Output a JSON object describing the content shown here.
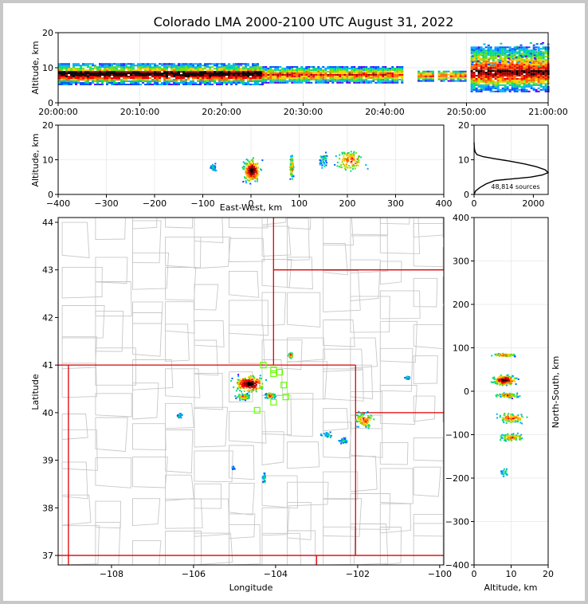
{
  "chart_data": {
    "type": "scatter",
    "title": "Colorado LMA 2000-2100 UTC August 31, 2022",
    "source_count_label": "48,814 sources",
    "colors": {
      "state_lines": "#e00000",
      "county_lines": "#c8c8c8",
      "station_markers": "#66ff00",
      "density_low": "#5500ff",
      "density_high": "#000000"
    },
    "time_height": {
      "ylabel": "Altitude, km",
      "ylim": [
        0,
        20
      ],
      "yticks": [
        "0",
        "10",
        "20"
      ],
      "xlim": [
        "20:00:00",
        "21:00:00"
      ],
      "xticks": [
        "20:00:00",
        "20:10:00",
        "20:20:00",
        "20:30:00",
        "20:40:00",
        "20:50:00",
        "21:00:00"
      ],
      "activity": [
        {
          "start_min": 0,
          "end_min": 25,
          "alt_low_km": 5,
          "alt_high_km": 11
        },
        {
          "start_min": 25,
          "end_min": 42,
          "alt_low_km": 5.5,
          "alt_high_km": 10
        },
        {
          "start_min": 44,
          "end_min": 46,
          "alt_low_km": 6,
          "alt_high_km": 9
        },
        {
          "start_min": 46.5,
          "end_min": 50,
          "alt_low_km": 6,
          "alt_high_km": 9
        },
        {
          "start_min": 50.5,
          "end_min": 60,
          "alt_low_km": 3,
          "alt_high_km": 16
        }
      ]
    },
    "ew_height": {
      "xlabel": "East-West, km",
      "ylabel": "Altitude, km",
      "xlim": [
        -400,
        400
      ],
      "xticks": [
        "−400",
        "−300",
        "−200",
        "−100",
        "0",
        "100",
        "200",
        "300",
        "400"
      ],
      "ylim": [
        0,
        20
      ],
      "yticks": [
        "0",
        "10",
        "20"
      ],
      "clusters": [
        {
          "x_km": 0,
          "alt_km": 7,
          "spread_x": 15,
          "spread_alt": 3,
          "density": "high"
        },
        {
          "x_km": 83,
          "alt_km": 8,
          "spread_x": 3,
          "spread_alt": 3,
          "density": "medium"
        },
        {
          "x_km": 150,
          "alt_km": 10,
          "spread_x": 8,
          "spread_alt": 2,
          "density": "low"
        },
        {
          "x_km": 205,
          "alt_km": 10,
          "spread_x": 25,
          "spread_alt": 3,
          "density": "medium"
        },
        {
          "x_km": -80,
          "alt_km": 8,
          "spread_x": 5,
          "spread_alt": 1,
          "density": "low"
        }
      ]
    },
    "histogram": {
      "xlim": [
        0,
        2500
      ],
      "xticks": [
        "0",
        "2000"
      ],
      "ylim": [
        0,
        20
      ],
      "yticks": [
        "0",
        "10",
        "20"
      ],
      "profile": [
        [
          0,
          0
        ],
        [
          50,
          1
        ],
        [
          200,
          2
        ],
        [
          400,
          3
        ],
        [
          700,
          4
        ],
        [
          1300,
          4.5
        ],
        [
          1900,
          5
        ],
        [
          2300,
          5.6
        ],
        [
          2500,
          6.3
        ],
        [
          2400,
          7.1
        ],
        [
          2100,
          8.0
        ],
        [
          1700,
          8.8
        ],
        [
          1200,
          9.6
        ],
        [
          700,
          10.3
        ],
        [
          300,
          10.9
        ],
        [
          100,
          11.5
        ],
        [
          40,
          12.2
        ],
        [
          15,
          13
        ],
        [
          5,
          14
        ],
        [
          0,
          15
        ]
      ]
    },
    "map": {
      "xlabel": "Longitude",
      "ylabel": "Latitude",
      "xlim": [
        -109.3,
        -99.9
      ],
      "ylim": [
        36.8,
        44.1
      ],
      "xticks": [
        {
          "value": -108,
          "label": "−108"
        },
        {
          "value": -106,
          "label": "−106"
        },
        {
          "value": -104,
          "label": "−104"
        },
        {
          "value": -102,
          "label": "−102"
        },
        {
          "value": -100,
          "label": "−100"
        }
      ],
      "yticks": [
        {
          "value": 37,
          "label": "37"
        },
        {
          "value": 38,
          "label": "38"
        },
        {
          "value": 39,
          "label": "39"
        },
        {
          "value": 40,
          "label": "40"
        },
        {
          "value": 41,
          "label": "41"
        },
        {
          "value": 42,
          "label": "42"
        },
        {
          "value": 43,
          "label": "43"
        },
        {
          "value": 44,
          "label": "44"
        }
      ],
      "stations": [
        {
          "lon": -104.3,
          "lat": 41.0
        },
        {
          "lon": -104.05,
          "lat": 40.9
        },
        {
          "lon": -103.9,
          "lat": 40.85
        },
        {
          "lon": -104.05,
          "lat": 40.82
        },
        {
          "lon": -103.8,
          "lat": 40.58
        },
        {
          "lon": -103.75,
          "lat": 40.33
        },
        {
          "lon": -104.05,
          "lat": 40.22
        },
        {
          "lon": -104.45,
          "lat": 40.05
        }
      ],
      "clusters": [
        {
          "lon": -104.65,
          "lat": 40.62,
          "spread_lon": 0.35,
          "spread_lat": 0.15,
          "density": "high"
        },
        {
          "lon": -104.15,
          "lat": 40.37,
          "spread_lon": 0.1,
          "spread_lat": 0.05,
          "density": "medium"
        },
        {
          "lon": -104.8,
          "lat": 40.35,
          "spread_lon": 0.15,
          "spread_lat": 0.05,
          "density": "medium"
        },
        {
          "lon": -101.85,
          "lat": 39.85,
          "spread_lon": 0.2,
          "spread_lat": 0.15,
          "density": "medium"
        },
        {
          "lon": -102.75,
          "lat": 39.55,
          "spread_lon": 0.15,
          "spread_lat": 0.05,
          "density": "low"
        },
        {
          "lon": -102.35,
          "lat": 39.43,
          "spread_lon": 0.1,
          "spread_lat": 0.05,
          "density": "low"
        },
        {
          "lon": -103.65,
          "lat": 41.22,
          "spread_lon": 0.05,
          "spread_lat": 0.05,
          "density": "medium"
        },
        {
          "lon": -100.8,
          "lat": 40.75,
          "spread_lon": 0.05,
          "spread_lat": 0.03,
          "density": "low"
        },
        {
          "lon": -106.35,
          "lat": 39.95,
          "spread_lon": 0.05,
          "spread_lat": 0.05,
          "density": "low"
        },
        {
          "lon": -104.3,
          "lat": 38.65,
          "spread_lon": 0.05,
          "spread_lat": 0.1,
          "density": "low"
        },
        {
          "lon": -105.05,
          "lat": 38.85,
          "spread_lon": 0.03,
          "spread_lat": 0.03,
          "density": "low"
        }
      ]
    },
    "ns_height": {
      "xlabel": "Altitude, km",
      "ylabel": "North-South, km",
      "xlim": [
        0,
        20
      ],
      "xticks": [
        "0",
        "10",
        "20"
      ],
      "ylim": [
        -400,
        400
      ],
      "yticks": [
        "−400",
        "−300",
        "−200",
        "−100",
        "0",
        "100",
        "200",
        "300",
        "400"
      ],
      "clusters": [
        {
          "alt_km": 8,
          "y_km": 27,
          "spread_alt": 3,
          "spread_y": 10,
          "density": "high"
        },
        {
          "alt_km": 8,
          "y_km": 85,
          "spread_alt": 3,
          "spread_y": 3,
          "density": "medium"
        },
        {
          "alt_km": 9,
          "y_km": -8,
          "spread_alt": 3,
          "spread_y": 5,
          "density": "medium"
        },
        {
          "alt_km": 10,
          "y_km": -60,
          "spread_alt": 4,
          "spread_y": 10,
          "density": "medium"
        },
        {
          "alt_km": 10,
          "y_km": -105,
          "spread_alt": 3,
          "spread_y": 8,
          "density": "medium"
        },
        {
          "alt_km": 8,
          "y_km": -185,
          "spread_alt": 1.5,
          "spread_y": 10,
          "density": "low"
        }
      ]
    }
  }
}
